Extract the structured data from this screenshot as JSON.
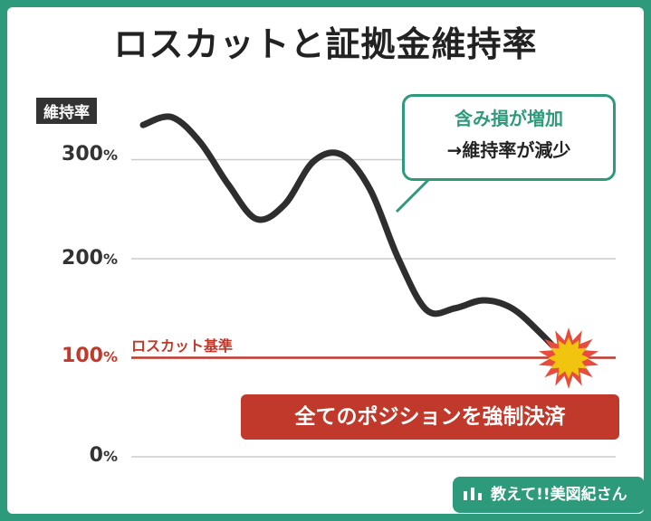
{
  "title": "ロスカットと証拠金維持率",
  "chart_data": {
    "type": "line",
    "ylabel": "維持率",
    "yticks": [
      {
        "value": 300,
        "label": "300",
        "unit": "%"
      },
      {
        "value": 200,
        "label": "200",
        "unit": "%"
      },
      {
        "value": 100,
        "label": "100",
        "unit": "%"
      },
      {
        "value": 0,
        "label": "0",
        "unit": "%"
      }
    ],
    "ylim": [
      0,
      300
    ],
    "grid": true,
    "series": [
      {
        "values": [
          335,
          343,
          318,
          275,
          240,
          255,
          298,
          305,
          270,
          200,
          148,
          150,
          158,
          150,
          125,
          95
        ]
      }
    ],
    "threshold": {
      "value": 100,
      "label": "ロスカット基準",
      "color": "#c0392b"
    },
    "line_color": "#2e2e2e",
    "accent_color": "#2e9a7c"
  },
  "callout": {
    "line1": "含み損が増加",
    "line2": "→維持率が減少"
  },
  "banner": {
    "text": "全てのポジションを強制決済"
  },
  "logo": {
    "text": "教えて!!美図紀さん"
  }
}
